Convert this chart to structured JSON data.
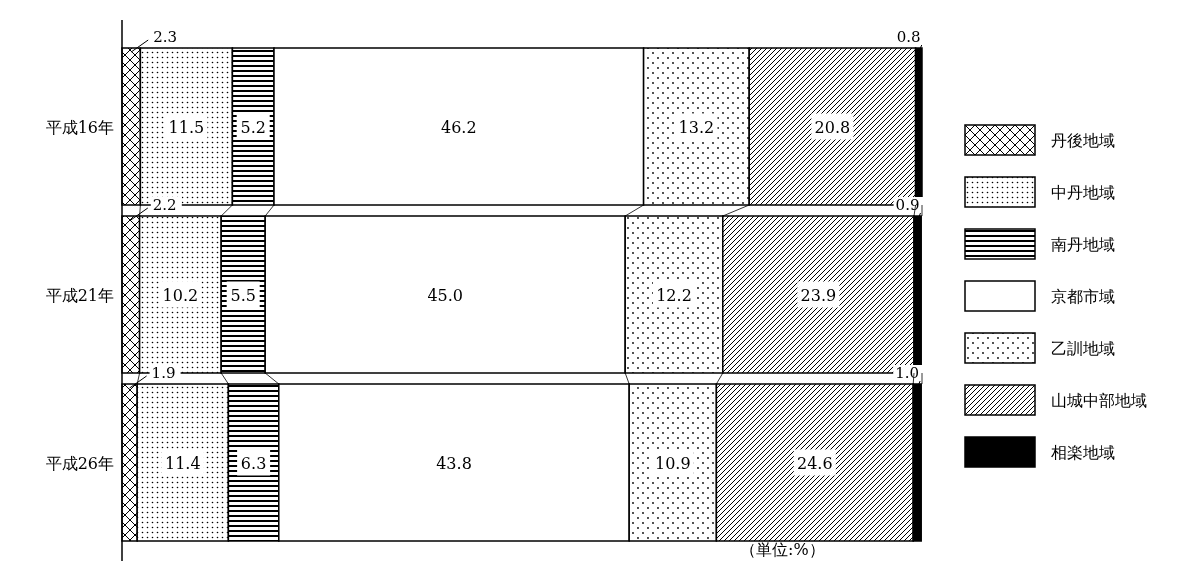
{
  "chart_data": {
    "type": "bar",
    "orientation": "horizontal",
    "stacked": true,
    "legend": "right",
    "xlim": [
      0,
      100
    ],
    "categories": [
      "平成16年",
      "平成21年",
      "平成26年"
    ],
    "series": [
      {
        "name": "丹後地域",
        "color": "#000000",
        "values": [
          2.3,
          2.2,
          1.9
        ],
        "value_labels": [
          "2.3",
          "2.2",
          "1.9"
        ]
      },
      {
        "name": "中丹地域",
        "color": "#000000",
        "values": [
          11.5,
          10.2,
          11.4
        ],
        "value_labels": [
          "11.5",
          "10.2",
          "11.4"
        ]
      },
      {
        "name": "南丹地域",
        "color": "#000000",
        "values": [
          5.2,
          5.5,
          6.3
        ],
        "value_labels": [
          "5.2",
          "5.5",
          "6.3"
        ]
      },
      {
        "name": "京都市域",
        "color": "#ffffff",
        "values": [
          46.2,
          45.0,
          43.8
        ],
        "value_labels": [
          "46.2",
          "45.0",
          "43.8"
        ]
      },
      {
        "name": "乙訓地域",
        "color": "#000000",
        "values": [
          13.2,
          12.2,
          10.9
        ],
        "value_labels": [
          "13.2",
          "12.2",
          "10.9"
        ]
      },
      {
        "name": "山城中部地域",
        "color": "#000000",
        "values": [
          20.8,
          23.9,
          24.6
        ],
        "value_labels": [
          "20.8",
          "23.9",
          "24.6"
        ]
      },
      {
        "name": "相楽地域",
        "color": "#000000",
        "values": [
          0.8,
          0.9,
          1.0
        ],
        "value_labels": [
          "0.8",
          "0.9",
          "1.0"
        ]
      }
    ],
    "annotations": [
      "（単位:%）"
    ]
  }
}
